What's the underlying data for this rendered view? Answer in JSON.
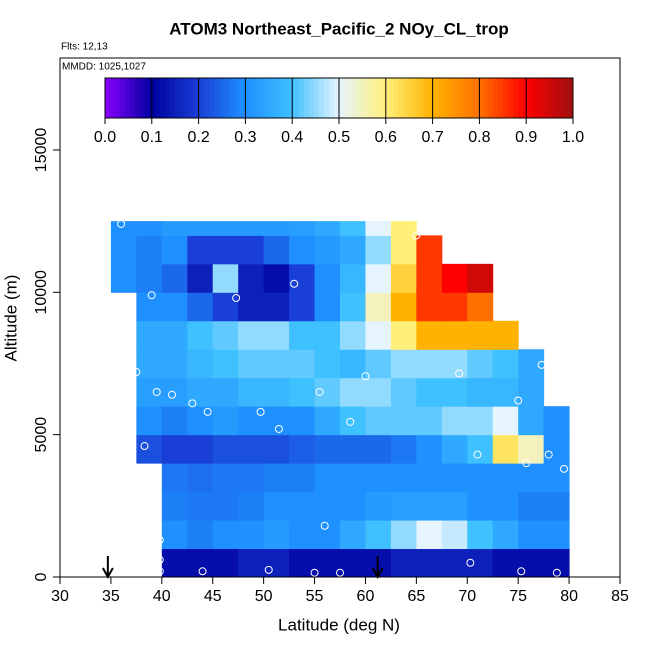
{
  "chart_data": {
    "type": "heatmap",
    "title": "ATOM3 Northeast_Pacific_2 NOy_CL_trop",
    "annotations": [
      "Flts: 12,13",
      "MMDD: 1025,1027"
    ],
    "xlabel": "Latitude (deg N)",
    "ylabel": "Altitude (m)",
    "xlim": [
      30,
      85
    ],
    "xticks": [
      30,
      35,
      40,
      45,
      50,
      55,
      60,
      65,
      70,
      75,
      80,
      85
    ],
    "ylim": [
      0,
      18230
    ],
    "yticks": [
      0,
      5000,
      10000,
      15000
    ],
    "x_edges": [
      35,
      37.5,
      40,
      42.5,
      45,
      47.5,
      50,
      52.5,
      55,
      57.5,
      60,
      62.5,
      65,
      67.5,
      70,
      72.5,
      75,
      77.5,
      80
    ],
    "y_edges": [
      0,
      1000,
      2000,
      3000,
      4000,
      5000,
      6000,
      7000,
      8000,
      9000,
      10000,
      11000,
      12000,
      12500
    ],
    "z": [
      [
        null,
        null,
        0.12,
        0.12,
        0.12,
        0.15,
        0.15,
        0.12,
        0.12,
        0.12,
        0.12,
        0.15,
        0.15,
        0.15,
        0.15,
        0.12,
        0.12,
        0.12
      ],
      [
        null,
        null,
        0.3,
        0.28,
        0.3,
        0.3,
        0.32,
        0.3,
        0.3,
        0.35,
        0.4,
        0.45,
        0.5,
        0.48,
        0.4,
        0.35,
        0.3,
        0.3
      ],
      [
        null,
        null,
        0.28,
        0.27,
        0.27,
        0.28,
        0.3,
        0.3,
        0.3,
        0.3,
        0.32,
        0.33,
        0.33,
        0.33,
        0.3,
        0.3,
        0.28,
        0.28
      ],
      [
        null,
        null,
        0.27,
        0.26,
        0.27,
        0.27,
        0.28,
        0.28,
        0.3,
        0.3,
        0.3,
        0.3,
        0.3,
        0.3,
        0.3,
        0.3,
        0.3,
        0.3
      ],
      [
        null,
        0.22,
        0.2,
        0.2,
        0.22,
        0.22,
        0.22,
        0.24,
        0.25,
        0.25,
        0.25,
        0.27,
        0.3,
        0.35,
        0.4,
        0.62,
        0.55,
        0.3
      ],
      [
        null,
        0.3,
        0.28,
        0.3,
        0.32,
        0.3,
        0.3,
        0.3,
        0.35,
        0.4,
        0.42,
        0.42,
        0.42,
        0.45,
        0.45,
        0.5,
        0.35,
        0.3
      ],
      [
        null,
        0.33,
        0.33,
        0.35,
        0.35,
        0.38,
        0.38,
        0.4,
        0.42,
        0.45,
        0.45,
        0.42,
        0.4,
        0.4,
        0.38,
        0.38,
        0.35,
        null
      ],
      [
        null,
        0.35,
        0.35,
        0.38,
        0.4,
        0.42,
        0.42,
        0.42,
        0.4,
        0.38,
        0.42,
        0.45,
        0.45,
        0.45,
        0.42,
        0.4,
        0.35,
        null
      ],
      [
        null,
        0.35,
        0.35,
        0.4,
        0.42,
        0.45,
        0.45,
        0.4,
        0.4,
        0.45,
        0.5,
        0.6,
        0.7,
        0.7,
        0.7,
        0.7,
        null,
        null
      ],
      [
        null,
        0.3,
        0.3,
        0.25,
        0.2,
        0.15,
        0.15,
        0.2,
        0.3,
        0.4,
        0.55,
        0.7,
        0.85,
        0.85,
        0.8,
        null,
        null,
        null
      ],
      [
        0.3,
        0.28,
        0.25,
        0.15,
        0.45,
        0.15,
        0.12,
        0.2,
        0.3,
        0.38,
        0.5,
        0.65,
        0.85,
        0.9,
        0.95,
        null,
        null,
        null
      ],
      [
        0.3,
        0.28,
        0.3,
        0.2,
        0.2,
        0.2,
        0.25,
        0.3,
        0.32,
        0.35,
        0.45,
        0.6,
        0.85,
        null,
        null,
        null,
        null,
        null
      ],
      [
        0.3,
        0.3,
        0.32,
        0.32,
        0.32,
        0.32,
        0.32,
        0.33,
        0.35,
        0.4,
        0.5,
        0.6,
        null,
        null,
        null,
        null,
        null,
        null
      ]
    ],
    "clim": [
      0,
      1
    ],
    "colormap": [
      "#8b00ff",
      "#0000a0",
      "#1a3fd6",
      "#1e90ff",
      "#3fc0ff",
      "#e6f4ff",
      "#fff07a",
      "#ffb300",
      "#ff7000",
      "#ff0000",
      "#9e1010"
    ],
    "cticks": [
      {
        "value": 0,
        "label": "0.0"
      },
      {
        "value": 0.1,
        "label": "0.1"
      },
      {
        "value": 0.2,
        "label": "0.2"
      },
      {
        "value": 0.3,
        "label": "0.3"
      },
      {
        "value": 0.4,
        "label": "0.4"
      },
      {
        "value": 0.5,
        "label": "0.5"
      },
      {
        "value": 0.6,
        "label": "0.6"
      },
      {
        "value": 0.7,
        "label": "0.7"
      },
      {
        "value": 0.8,
        "label": "0.8"
      },
      {
        "value": 0.9,
        "label": "0.9"
      },
      {
        "value": 1,
        "label": "1.0"
      }
    ],
    "points": {
      "x": [
        36,
        65,
        53,
        39,
        47.3,
        37.5,
        60,
        69.2,
        77.3,
        39.5,
        41,
        43,
        44.5,
        49.7,
        55.5,
        58.5,
        51.5,
        38.3,
        75,
        71,
        75.8,
        78,
        79.5,
        56,
        39.8,
        39.8,
        70.3,
        39.8,
        44,
        50.5,
        57.5,
        55,
        75.3,
        78.8
      ],
      "y": [
        12400,
        12000,
        10300,
        9900,
        9800,
        7200,
        7050,
        7150,
        7450,
        6500,
        6400,
        6100,
        5800,
        5800,
        6500,
        5450,
        5200,
        4600,
        6200,
        4300,
        4000,
        4300,
        3800,
        1800,
        1300,
        600,
        500,
        200,
        200,
        250,
        150,
        150,
        200,
        150
      ]
    },
    "arrows_x": [
      34.7,
      61.2
    ]
  }
}
